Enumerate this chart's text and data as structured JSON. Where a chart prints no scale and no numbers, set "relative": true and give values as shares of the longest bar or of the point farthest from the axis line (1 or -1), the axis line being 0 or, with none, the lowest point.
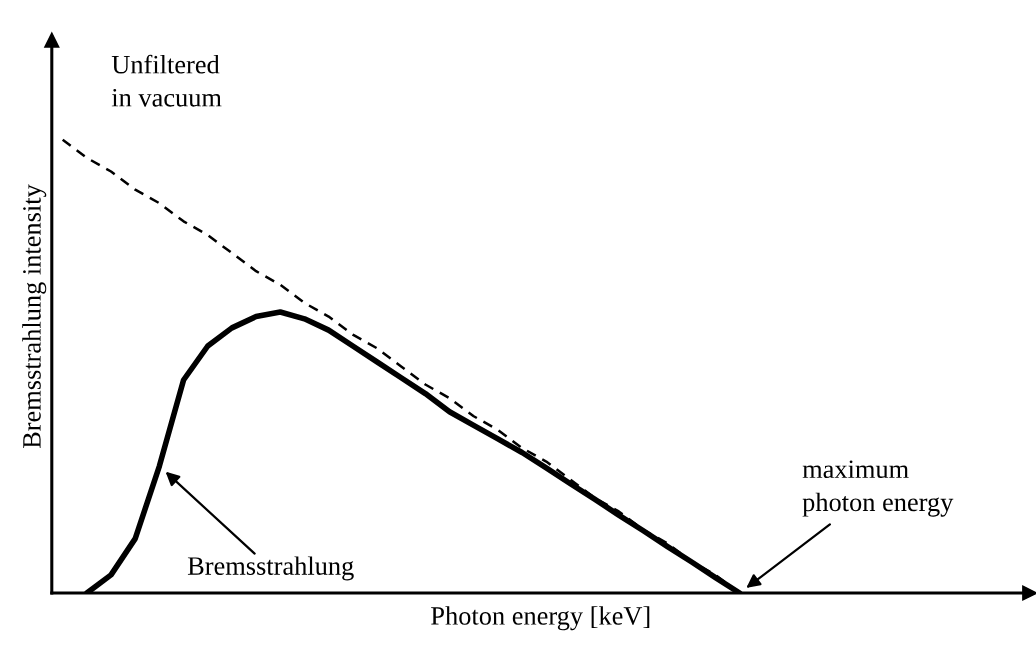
{
  "chart_data": {
    "type": "line",
    "relative": true,
    "xlabel": "Photon energy [keV]",
    "ylabel": "Bremsstrahlung intensity",
    "categories": [
      null,
      null,
      null,
      null,
      null,
      null,
      null,
      null,
      null,
      null,
      null,
      null,
      null,
      null,
      null,
      null,
      null,
      null,
      null,
      null,
      null,
      null,
      null,
      null,
      null,
      null,
      null,
      null,
      null,
      null,
      null,
      null,
      null,
      null,
      null,
      null,
      null,
      null,
      null,
      null
    ],
    "series": [
      {
        "name": "Unfiltered\nin vacuum",
        "color": "#000000",
        "line_style": "dashed",
        "values": [
          1.0,
          0.96,
          0.93,
          0.89,
          0.86,
          0.82,
          0.79,
          0.75,
          0.71,
          0.68,
          0.64,
          0.61,
          0.57,
          0.54,
          0.5,
          0.46,
          0.43,
          0.39,
          0.36,
          0.32,
          0.29,
          0.25,
          0.21,
          0.18,
          0.14,
          0.11,
          0.07,
          0.04,
          0,
          null,
          null,
          null,
          null,
          null,
          null,
          null,
          null,
          null,
          null,
          null
        ]
      },
      {
        "name": "Bremsstrahlung",
        "color": "#000000",
        "line_style": "solid",
        "values": [
          null,
          0,
          0.04,
          0.12,
          0.28,
          0.47,
          0.545,
          0.585,
          0.61,
          0.62,
          0.605,
          0.58,
          0.545,
          0.51,
          0.475,
          0.44,
          0.4,
          0.37,
          0.34,
          0.31,
          0.276,
          0.241,
          0.207,
          0.172,
          0.138,
          0.103,
          0.069,
          0.034,
          0,
          null,
          null,
          null,
          null,
          null,
          null,
          null,
          null,
          null,
          null,
          null
        ]
      }
    ],
    "annotations": [
      "maximum\nphoton energy"
    ]
  }
}
